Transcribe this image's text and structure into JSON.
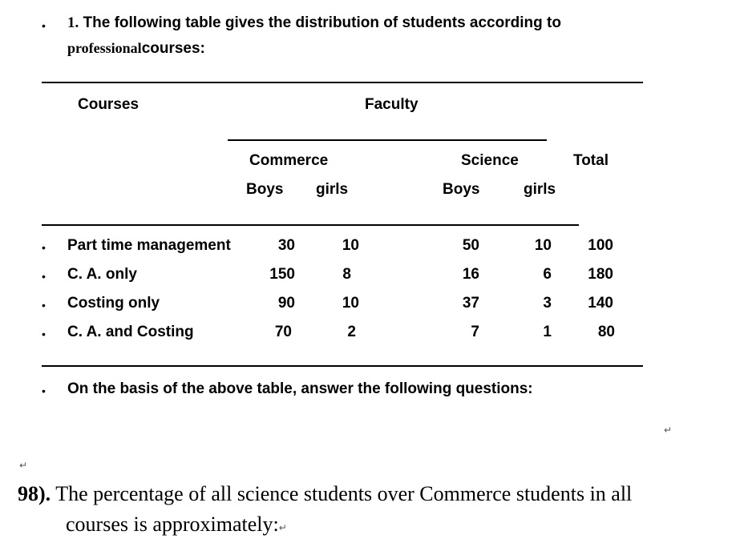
{
  "intro": {
    "number": "1.",
    "line1": "The following table gives the distribution of students according to",
    "line2_serif": "professional",
    "line2_rest": "courses:"
  },
  "table": {
    "courses_header": "Courses",
    "faculty_header": "Faculty",
    "commerce_header": "Commerce",
    "science_header": "Science",
    "total_header": "Total",
    "commerce_boys": "Boys",
    "commerce_girls": "girls",
    "science_boys": "Boys",
    "science_girls": "girls",
    "rows": [
      {
        "course": "Part time management",
        "c_boys": "30",
        "c_girls": "10",
        "s_boys": "50",
        "s_girls": "10",
        "total": "100"
      },
      {
        "course": "C. A. only",
        "c_boys": "150",
        "c_girls": "8",
        "s_boys": "16",
        "s_girls": "6",
        "total": "180"
      },
      {
        "course": "Costing only",
        "c_boys": "90",
        "c_girls": "10",
        "s_boys": "37",
        "s_girls": "3",
        "total": "140"
      },
      {
        "course": "C. A. and Costing",
        "c_boys": "70",
        "c_girls": "2",
        "s_boys": "7",
        "s_girls": "1",
        "total": "80"
      }
    ]
  },
  "instruction": "On the basis of the above table, answer the following questions:",
  "paragraph_mark": "↵",
  "question": {
    "number": "98).",
    "line1": "The percentage of all science students over Commerce students in all",
    "line2": "courses is approximately:"
  }
}
